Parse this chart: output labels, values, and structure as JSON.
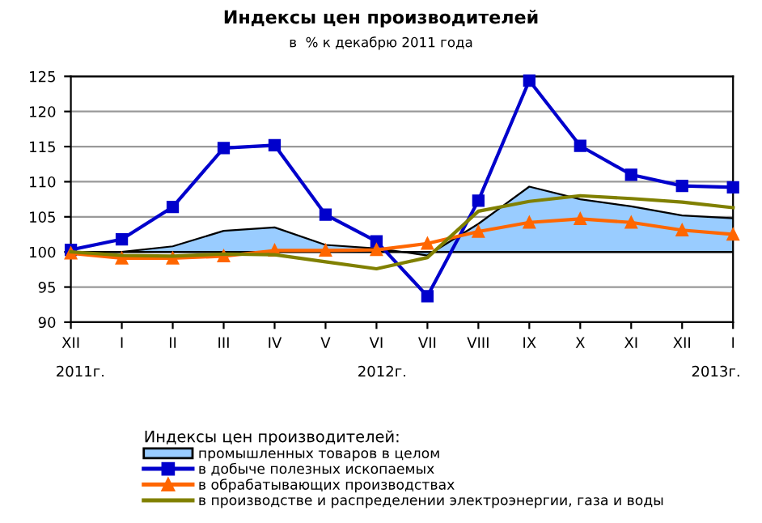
{
  "chart_data": {
    "type": "line",
    "title": "Индексы цен производителей",
    "subtitle": "в  % к декабрю 2011 года",
    "categories": [
      "XII",
      "I",
      "II",
      "III",
      "IV",
      "V",
      "VI",
      "VII",
      "VIII",
      "IX",
      "X",
      "XI",
      "XII",
      "I"
    ],
    "ylim": [
      90,
      125
    ],
    "yticks": [
      90,
      95,
      100,
      105,
      110,
      115,
      120,
      125
    ],
    "grid": "y",
    "legend": "bottom",
    "legend_title": "Индексы цен производителей:",
    "ref_lines": [
      {
        "axis": "y",
        "value": 100,
        "color": "#000000"
      }
    ],
    "annotations": [
      "2011г.",
      "2012г.",
      "2013г."
    ],
    "series": [
      {
        "name": "промышленных товаров в целом",
        "type": "area",
        "color": "#99ccff",
        "values": [
          100,
          100,
          100.8,
          103,
          103.5,
          101,
          100.5,
          99.5,
          104,
          109.3,
          107.5,
          106.5,
          105.2,
          104.8
        ]
      },
      {
        "name": "в добыче полезных ископаемых",
        "marker": "square",
        "color": "#0000cc",
        "values": [
          100.3,
          101.8,
          106.4,
          114.8,
          115.2,
          105.3,
          101.5,
          93.7,
          107.3,
          124.4,
          115.1,
          111,
          109.4,
          109.2
        ]
      },
      {
        "name": "в обрабатывающих производствах",
        "marker": "triangle",
        "color": "#ff6600",
        "values": [
          99.8,
          99.1,
          99.1,
          99.4,
          100.2,
          100.2,
          100.3,
          101.2,
          102.9,
          104.2,
          104.7,
          104.2,
          103.1,
          102.5
        ]
      },
      {
        "name": "в производстве и распределении электроэнергии, газа и воды",
        "marker": "none",
        "color": "#808000",
        "values": [
          100,
          99.5,
          99.4,
          99.7,
          99.6,
          98.6,
          97.6,
          99.2,
          105.8,
          107.2,
          108,
          107.6,
          107.1,
          106.3
        ]
      }
    ]
  }
}
